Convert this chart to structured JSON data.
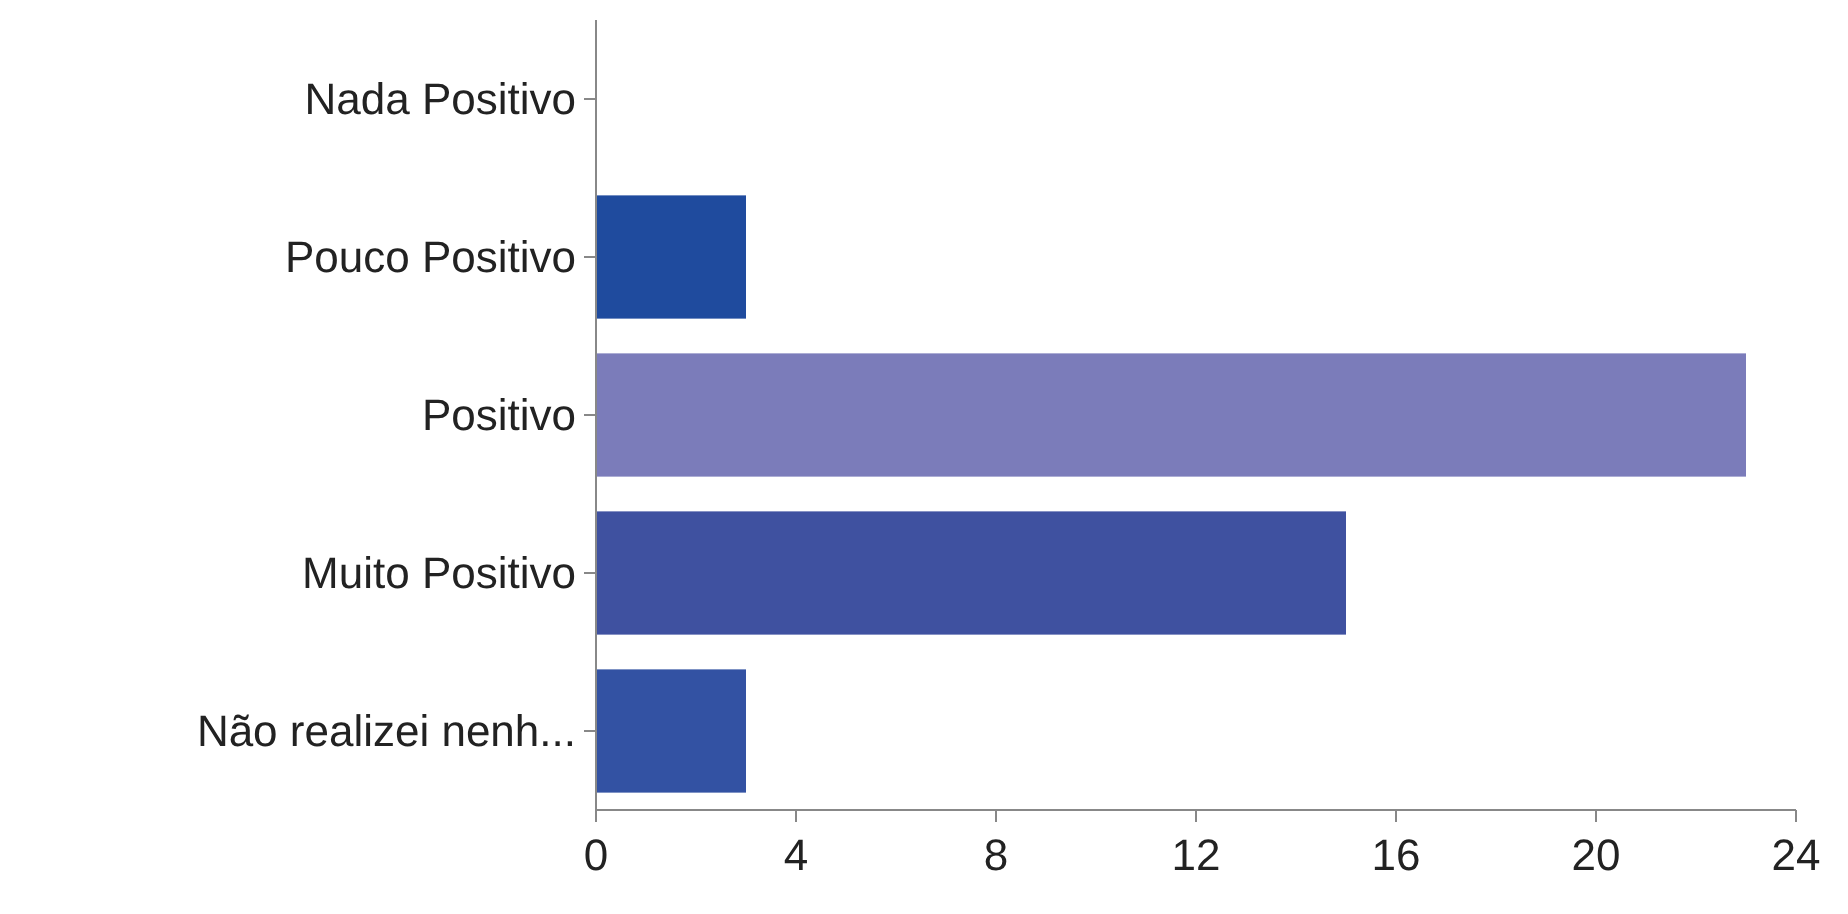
{
  "chart_data": {
    "type": "bar",
    "orientation": "horizontal",
    "categories": [
      "Nada Positivo",
      "Pouco Positivo",
      "Positivo",
      "Muito Positivo",
      "Não realizei nenh..."
    ],
    "values": [
      0,
      3,
      23,
      15,
      3
    ],
    "colors": [
      "#3f51a0",
      "#1f4b9e",
      "#7b7cba",
      "#3f51a0",
      "#3352a3"
    ],
    "xlim": [
      0,
      24
    ],
    "xticks": [
      0,
      4,
      8,
      12,
      16,
      20,
      24
    ],
    "grid": false
  }
}
